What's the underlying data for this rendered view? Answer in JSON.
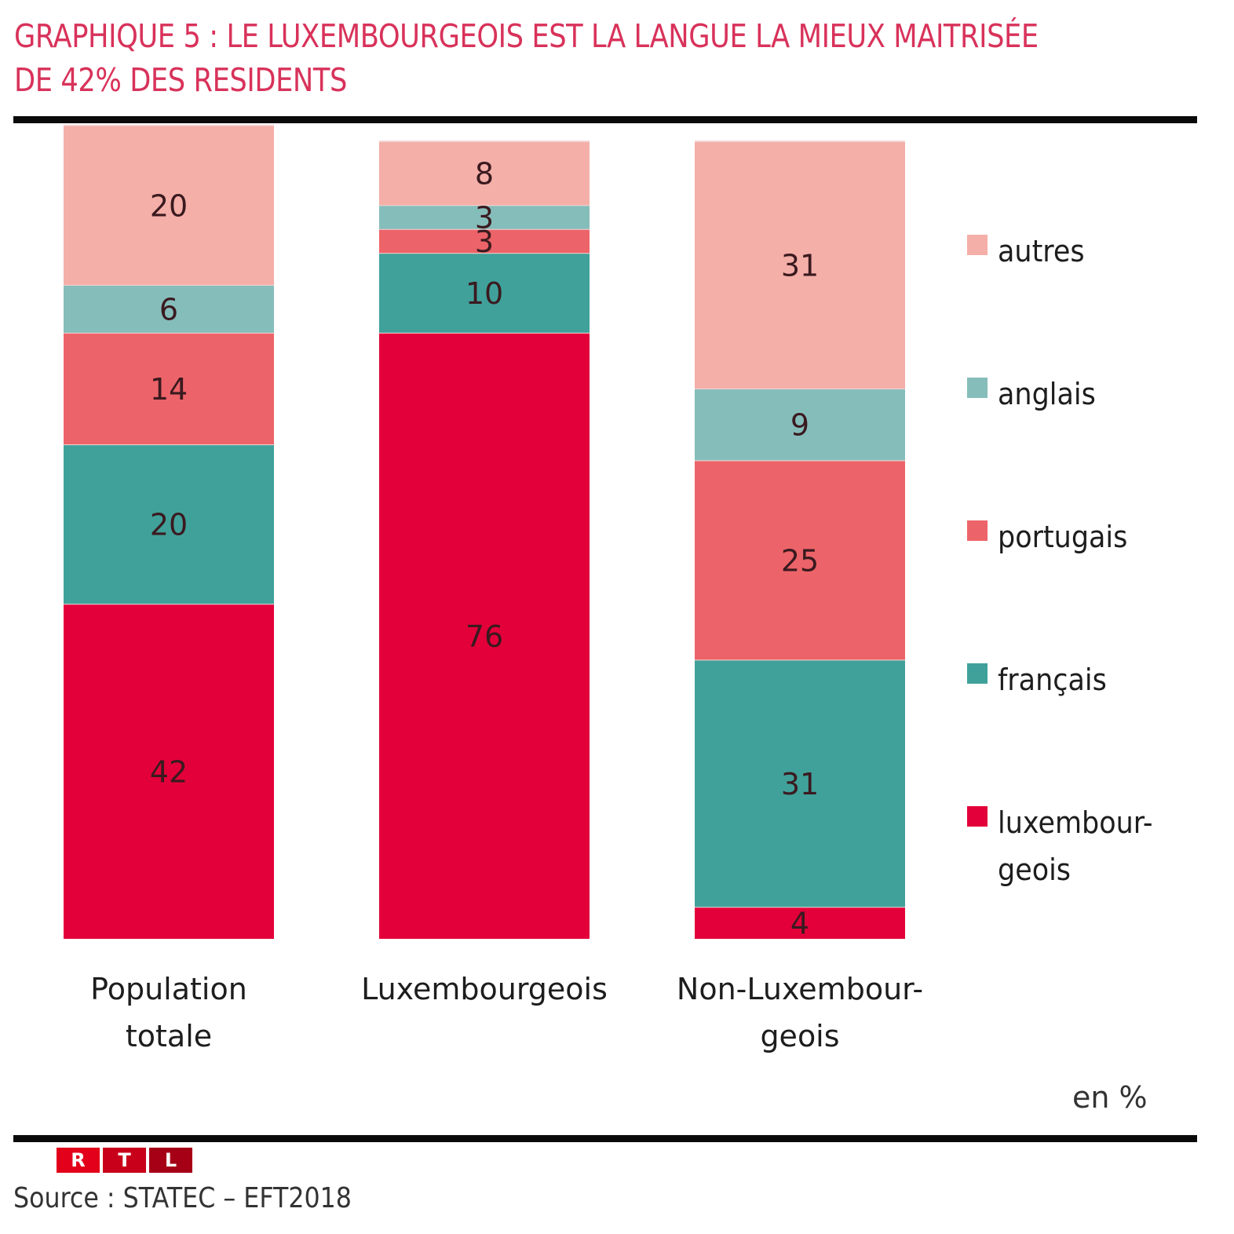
{
  "header": {
    "title_line1": "GRAPHIQUE 5 : LE LUXEMBOURGEOIS EST LA LANGUE LA MIEUX MAITRISÉE",
    "title_line2": "DE 42% DES RESIDENTS"
  },
  "footer": {
    "unit": "en %",
    "logo_letters": [
      "R",
      "T",
      "L"
    ],
    "logo_colors": [
      "#e2001a",
      "#c8001a",
      "#a50016"
    ],
    "source": "Source : STATEC – EFT2018"
  },
  "chart_data": {
    "type": "bar",
    "stacked": true,
    "title": "GRAPHIQUE 5 : LE LUXEMBOURGEOIS EST LA LANGUE LA MIEUX MAITRISÉE DE 42% DES RESIDENTS",
    "xlabel": "",
    "ylabel": "en %",
    "ylim": [
      0,
      100
    ],
    "grid": false,
    "legend_position": "right",
    "categories": [
      "Population\ntotale",
      "Luxembourgeois",
      "Non-Luxembour-\ngeois"
    ],
    "series": [
      {
        "name": "luxembourgeois",
        "legend_label": "luxembour-\ngeois",
        "color": "#e3003a",
        "values": [
          42,
          76,
          4
        ]
      },
      {
        "name": "français",
        "legend_label": "français",
        "color": "#40a19a",
        "values": [
          20,
          10,
          31
        ]
      },
      {
        "name": "portugais",
        "legend_label": "portugais",
        "color": "#ec6469",
        "values": [
          14,
          3,
          25
        ]
      },
      {
        "name": "anglais",
        "legend_label": "anglais",
        "color": "#85bdba",
        "values": [
          6,
          3,
          9
        ]
      },
      {
        "name": "autres",
        "legend_label": "autres",
        "color": "#f4afa8",
        "values": [
          20,
          8,
          31
        ]
      }
    ]
  }
}
